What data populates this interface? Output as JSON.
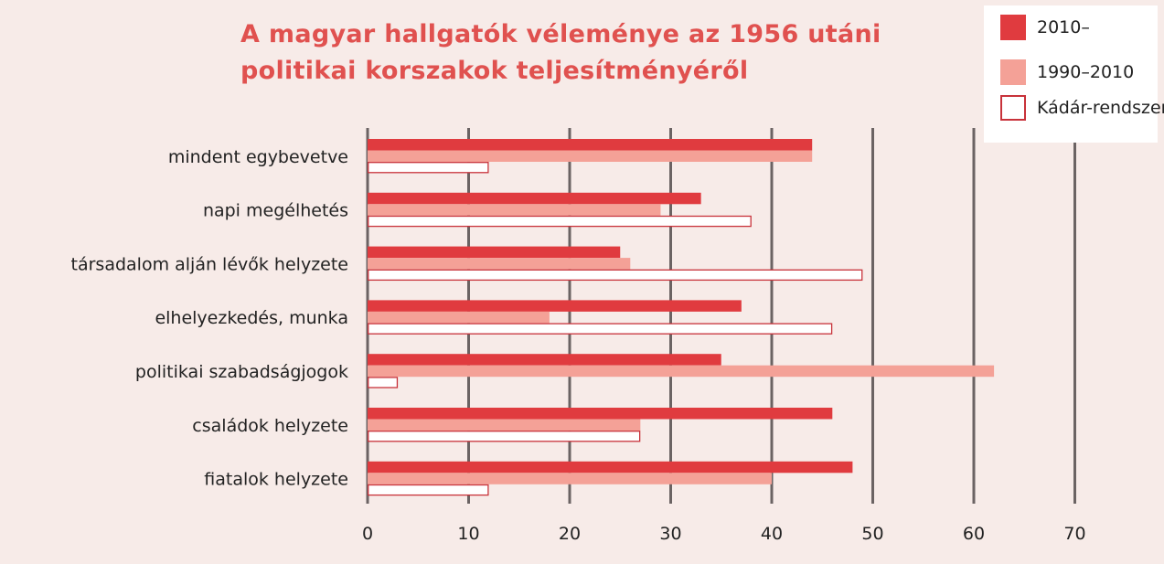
{
  "title": {
    "line1": "A magyar hallgatók véleménye az 1956 utáni",
    "line2": "politikai korszakok teljesítményéről"
  },
  "chart_data": {
    "type": "bar",
    "orientation": "horizontal",
    "categories": [
      "mindent egybevetve",
      "napi megélhetés",
      "társadalom alján lévők helyzete",
      "elhelyezkedés, munka",
      "politikai szabadságjogok",
      "családok helyzete",
      "fiatalok helyzete"
    ],
    "series": [
      {
        "name": "2010–",
        "color": "#e03b3f",
        "values": [
          44,
          33,
          25,
          37,
          35,
          46,
          48
        ]
      },
      {
        "name": "1990–2010",
        "color": "#f4a197",
        "values": [
          44,
          29,
          26,
          18,
          62,
          27,
          40
        ]
      },
      {
        "name": "Kádár-rendszer",
        "color": "#ffffff",
        "border": "#c8323a",
        "values": [
          12,
          38,
          49,
          46,
          3,
          27,
          12
        ]
      }
    ],
    "xlim": [
      0,
      70
    ],
    "xticks": [
      "0",
      "10",
      "20",
      "30",
      "40",
      "50",
      "60",
      "70"
    ],
    "grid": true,
    "legend_position": "top-right"
  },
  "colors": {
    "background": "#f7ebe8",
    "title": "#e0514f",
    "grid": "#6b6363"
  }
}
